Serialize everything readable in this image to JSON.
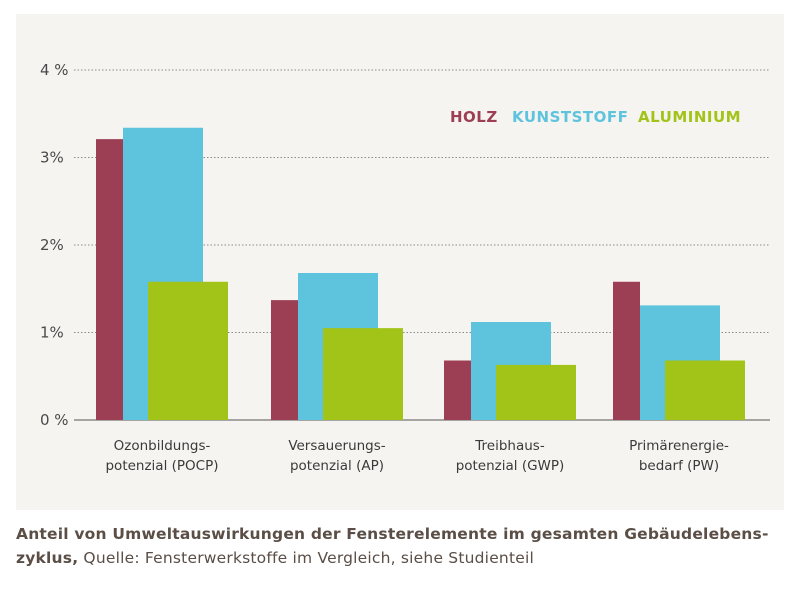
{
  "chart_data": {
    "type": "bar",
    "yticks": [
      "0 %",
      "1%",
      "2%",
      "3%",
      "4 %"
    ],
    "ylim": [
      0,
      4
    ],
    "grid": true,
    "legend_position": "top-right",
    "categories": [
      [
        "Ozonbildungs-",
        "potenzial (POCP)"
      ],
      [
        "Versauerungs-",
        "potenzial (AP)"
      ],
      [
        "Treibhaus-",
        "potenzial (GWP)"
      ],
      [
        "Primärenergie-",
        "bedarf (PW)"
      ]
    ],
    "series": [
      {
        "name": "HOLZ",
        "color": "#9c3f55",
        "values": [
          3.21,
          1.37,
          0.68,
          1.58
        ]
      },
      {
        "name": "KUNSTSTOFF",
        "color": "#5ec3dc",
        "values": [
          3.34,
          1.68,
          1.12,
          1.31
        ]
      },
      {
        "name": "ALUMINIUM",
        "color": "#a2c418",
        "values": [
          1.58,
          1.05,
          0.63,
          0.68
        ]
      }
    ]
  },
  "caption": {
    "bold": "Anteil von Umweltauswirkungen der Fensterelemente im gesamten Gebäudelebens-zyklus,",
    "normal": " Quelle: Fensterwerkstoffe im Vergleich, siehe Studienteil"
  }
}
